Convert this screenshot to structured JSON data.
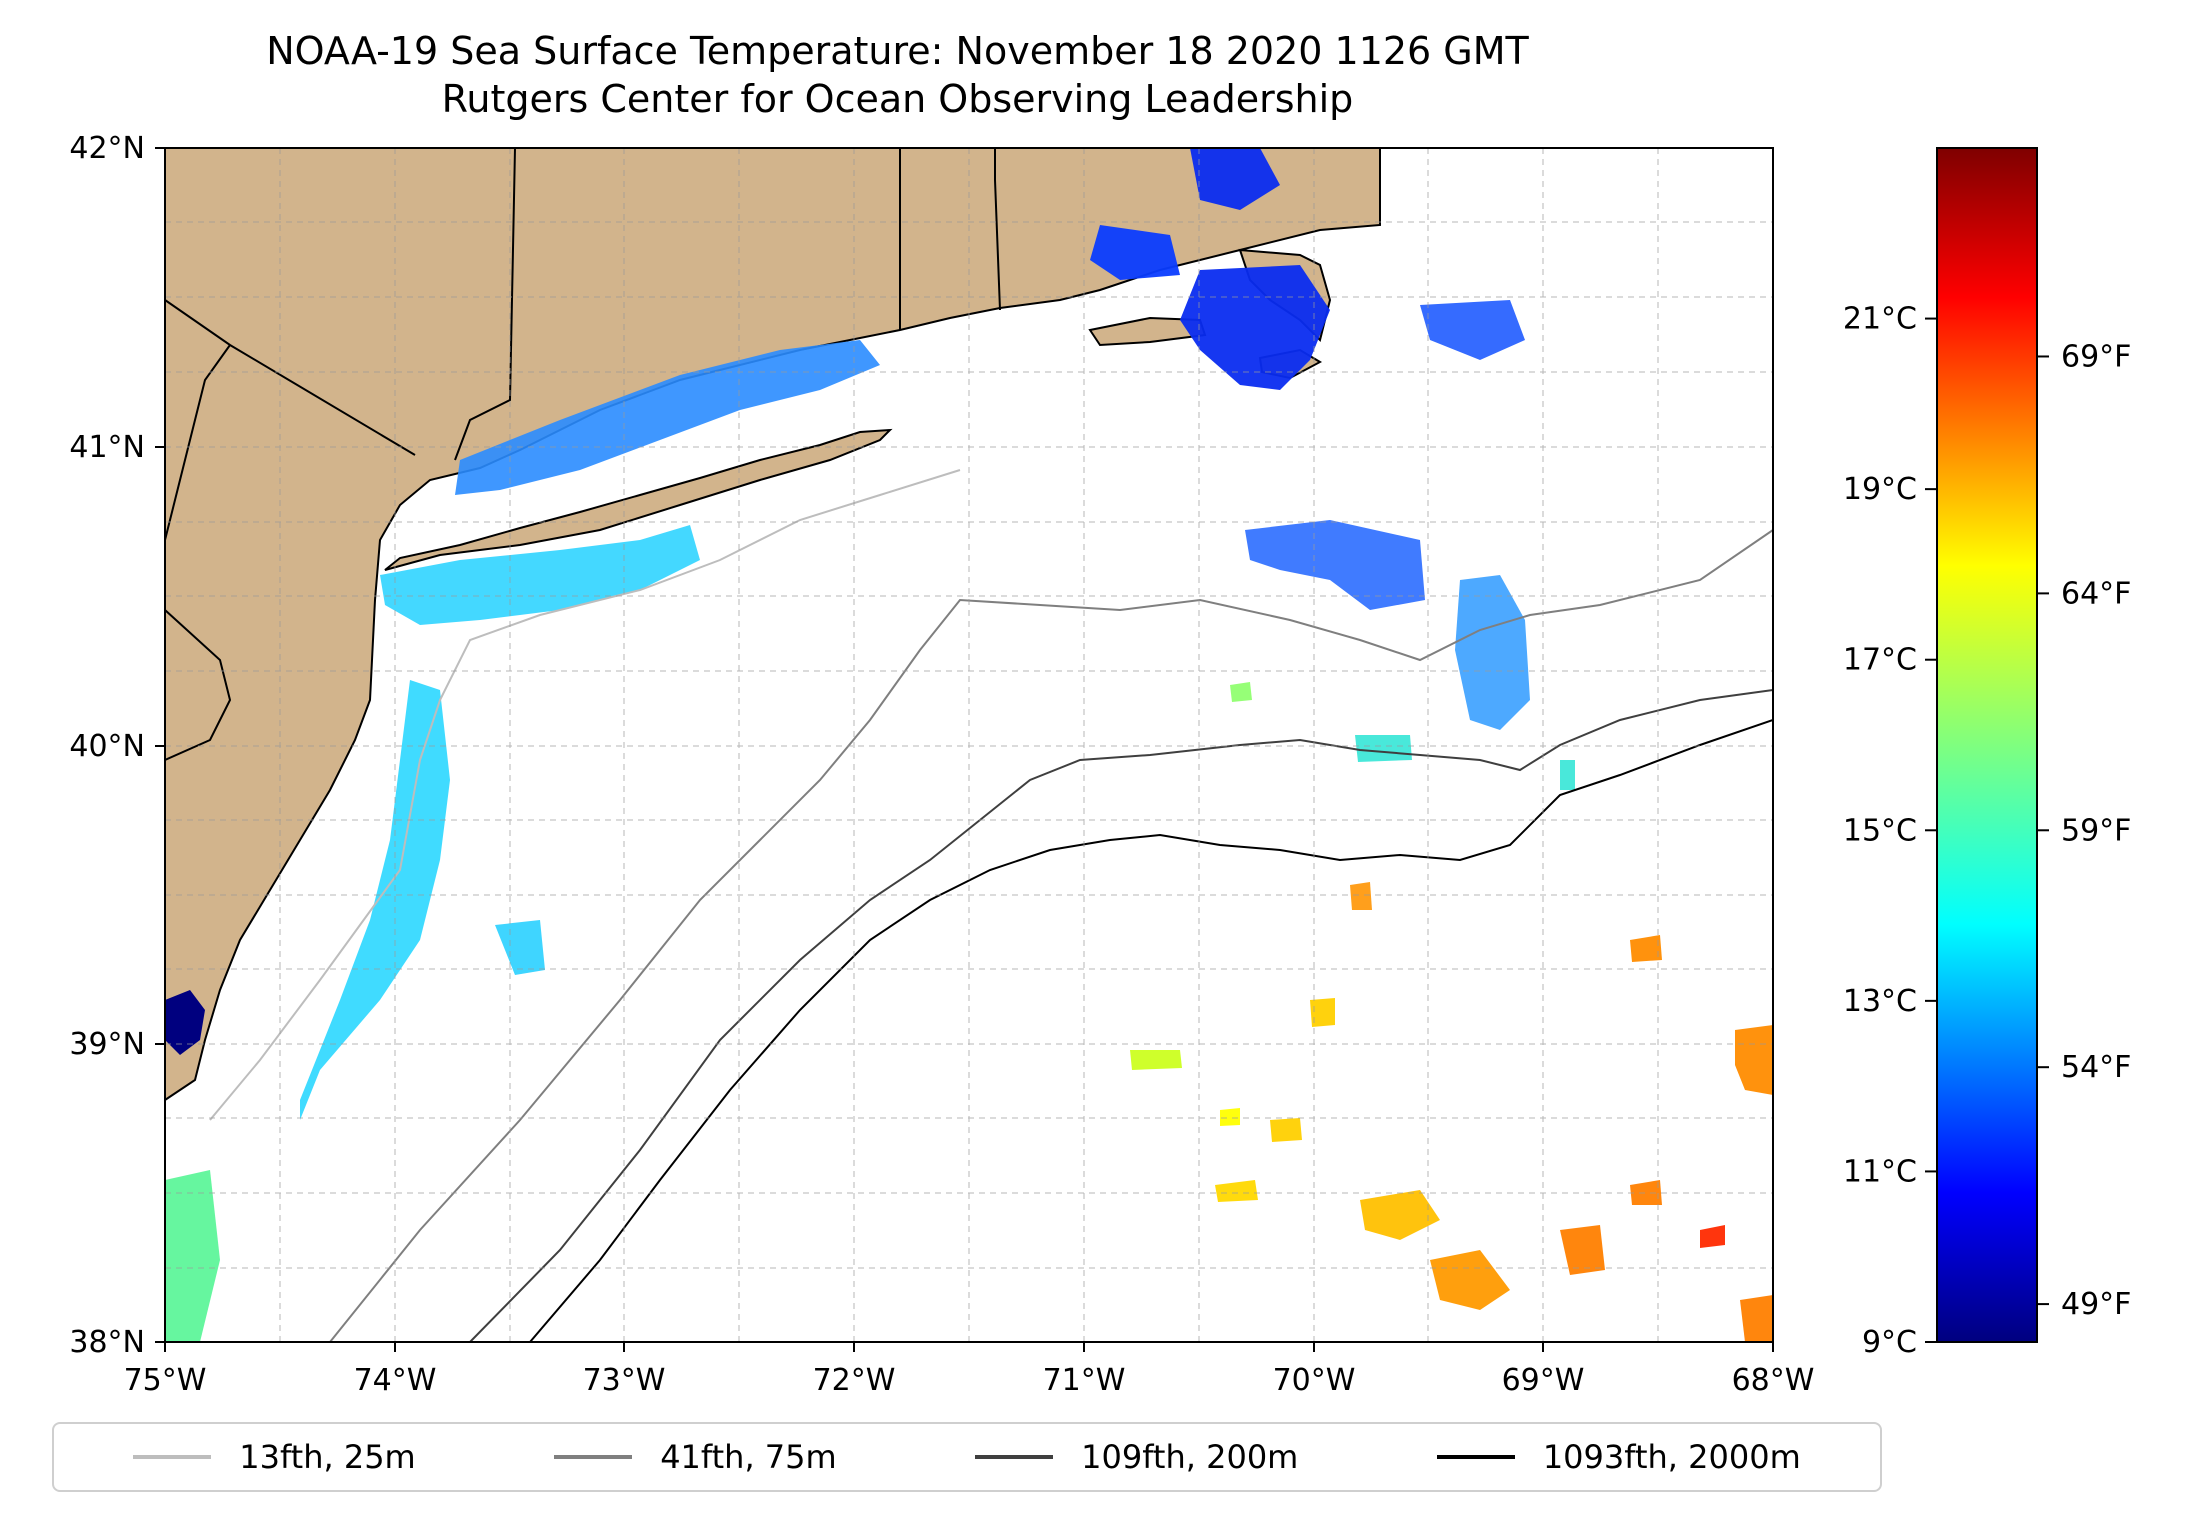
{
  "title": "NOAA-19 Sea Surface Temperature: November 18 2020 1126 GMT",
  "subtitle": "Rutgers Center for Ocean Observing Leadership",
  "map": {
    "lon_min": -75,
    "lon_max": -68,
    "lat_min": 38,
    "lat_max": 42,
    "lat_ticks": [
      "42°N",
      "41°N",
      "40°N",
      "39°N",
      "38°N"
    ],
    "lon_ticks": [
      "75°W",
      "74°W",
      "73°W",
      "72°W",
      "71°W",
      "70°W",
      "69°W",
      "68°W"
    ],
    "colors": {
      "land": "#d2b48c",
      "ocean": "#ffffff",
      "coast": "#000000",
      "grid": "#9a9a9a"
    }
  },
  "colorbar": {
    "celsius_min": 9,
    "celsius_max": 23,
    "celsius_ticks": [
      {
        "label": "21°C",
        "value": 21
      },
      {
        "label": "19°C",
        "value": 19
      },
      {
        "label": "17°C",
        "value": 17
      },
      {
        "label": "15°C",
        "value": 15
      },
      {
        "label": "13°C",
        "value": 13
      },
      {
        "label": "11°C",
        "value": 11
      },
      {
        "label": "9°C",
        "value": 9
      }
    ],
    "fahrenheit_ticks": [
      {
        "label": "69°F",
        "value": 69
      },
      {
        "label": "64°F",
        "value": 64
      },
      {
        "label": "59°F",
        "value": 59
      },
      {
        "label": "54°F",
        "value": 54
      },
      {
        "label": "49°F",
        "value": 49
      }
    ],
    "palette": [
      "#00007f",
      "#0000ff",
      "#007fff",
      "#00ffff",
      "#7fff7f",
      "#ffff00",
      "#ff7f00",
      "#ff0000",
      "#7f0000"
    ]
  },
  "legend": {
    "items": [
      {
        "label": "13fth, 25m",
        "color": "#bdbdbd"
      },
      {
        "label": "41fth, 75m",
        "color": "#7f7f7f"
      },
      {
        "label": "109fth, 200m",
        "color": "#3f3f3f"
      },
      {
        "label": "1093fth, 2000m",
        "color": "#000000"
      }
    ]
  }
}
